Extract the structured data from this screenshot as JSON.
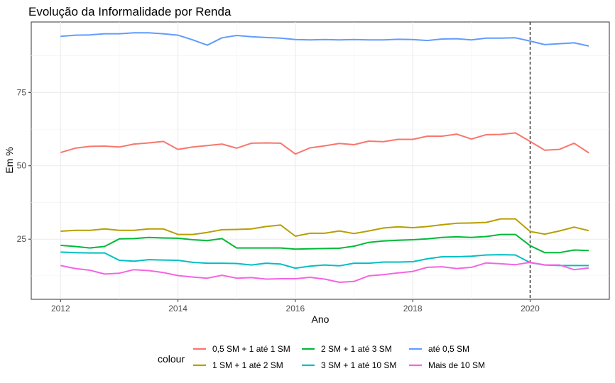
{
  "chart_data": {
    "type": "line",
    "title": "Evolução da Informalidade por Renda",
    "xlabel": "Ano",
    "ylabel": "Em %",
    "xlim": [
      2011.5,
      2021.35
    ],
    "ylim": [
      4.5,
      99
    ],
    "x_ticks": [
      2012,
      2014,
      2016,
      2018,
      2020
    ],
    "x_tick_labels": [
      "2012",
      "2014",
      "2016",
      "2018",
      "2020"
    ],
    "y_ticks": [
      25,
      50,
      75
    ],
    "y_tick_labels": [
      "25",
      "50",
      "75"
    ],
    "grid": true,
    "vline": {
      "x": 2020,
      "style": "dashed",
      "color": "#000000"
    },
    "legend": {
      "title": "colour",
      "position": "bottom"
    },
    "series": [
      {
        "name": "0,5 SM + 1 até 1 SM",
        "color": "#F8766D",
        "x": [
          2012,
          2012.25,
          2012.5,
          2012.75,
          2013,
          2013.25,
          2013.5,
          2013.75,
          2014,
          2014.25,
          2014.5,
          2014.75,
          2015,
          2015.25,
          2015.5,
          2015.75,
          2016,
          2016.25,
          2016.5,
          2016.75,
          2017,
          2017.25,
          2017.5,
          2017.75,
          2018,
          2018.25,
          2018.5,
          2018.75,
          2019,
          2019.25,
          2019.5,
          2019.75,
          2020,
          2020.25,
          2020.5,
          2020.75,
          2021
        ],
        "values": [
          54.5,
          56.0,
          56.6,
          56.7,
          56.4,
          57.4,
          57.8,
          58.3,
          55.6,
          56.4,
          56.9,
          57.4,
          56.0,
          57.7,
          57.8,
          57.7,
          54.0,
          56.1,
          56.8,
          57.6,
          57.2,
          58.4,
          58.2,
          59.0,
          59.0,
          60.1,
          60.1,
          60.8,
          59.1,
          60.6,
          60.7,
          61.2,
          58.3,
          55.3,
          55.6,
          57.7,
          54.4
        ]
      },
      {
        "name": "1 SM + 1 até 2 SM",
        "color": "#B79F00",
        "x": [
          2012,
          2012.25,
          2012.5,
          2012.75,
          2013,
          2013.25,
          2013.5,
          2013.75,
          2014,
          2014.25,
          2014.5,
          2014.75,
          2015,
          2015.25,
          2015.5,
          2015.75,
          2016,
          2016.25,
          2016.5,
          2016.75,
          2017,
          2017.25,
          2017.5,
          2017.75,
          2018,
          2018.25,
          2018.5,
          2018.75,
          2019,
          2019.25,
          2019.5,
          2019.75,
          2020,
          2020.25,
          2020.5,
          2020.75,
          2021
        ],
        "values": [
          27.7,
          28.0,
          28.0,
          28.5,
          28.0,
          28.0,
          28.5,
          28.5,
          26.6,
          26.6,
          27.3,
          28.2,
          28.3,
          28.5,
          29.3,
          29.8,
          26.0,
          27.0,
          27.0,
          27.8,
          26.9,
          27.8,
          28.8,
          29.2,
          28.9,
          29.3,
          29.9,
          30.4,
          30.5,
          30.7,
          31.9,
          31.9,
          27.6,
          26.7,
          27.8,
          29.1,
          27.9
        ]
      },
      {
        "name": "2 SM + 1 até 3 SM",
        "color": "#00BA38",
        "x": [
          2012,
          2012.25,
          2012.5,
          2012.75,
          2013,
          2013.25,
          2013.5,
          2013.75,
          2014,
          2014.25,
          2014.5,
          2014.75,
          2015,
          2015.25,
          2015.5,
          2015.75,
          2016,
          2016.25,
          2016.5,
          2016.75,
          2017,
          2017.25,
          2017.5,
          2017.75,
          2018,
          2018.25,
          2018.5,
          2018.75,
          2019,
          2019.25,
          2019.5,
          2019.75,
          2020,
          2020.25,
          2020.5,
          2020.75,
          2021
        ],
        "values": [
          22.9,
          22.5,
          22.0,
          22.5,
          25.1,
          25.2,
          25.6,
          25.4,
          25.3,
          24.8,
          24.5,
          25.2,
          22.0,
          22.0,
          22.0,
          22.0,
          21.6,
          21.7,
          21.8,
          21.9,
          22.6,
          23.9,
          24.4,
          24.6,
          24.8,
          25.1,
          25.6,
          25.8,
          25.6,
          25.9,
          26.6,
          26.6,
          22.8,
          20.4,
          20.4,
          21.3,
          21.1
        ]
      },
      {
        "name": "3 SM + 1 até 10 SM",
        "color": "#00BFC4",
        "x": [
          2012,
          2012.25,
          2012.5,
          2012.75,
          2013,
          2013.25,
          2013.5,
          2013.75,
          2014,
          2014.25,
          2014.5,
          2014.75,
          2015,
          2015.25,
          2015.5,
          2015.75,
          2016,
          2016.25,
          2016.5,
          2016.75,
          2017,
          2017.25,
          2017.5,
          2017.75,
          2018,
          2018.25,
          2018.5,
          2018.75,
          2019,
          2019.25,
          2019.5,
          2019.75,
          2020,
          2020.25,
          2020.5,
          2020.75,
          2021
        ],
        "values": [
          20.6,
          20.4,
          20.3,
          20.3,
          17.8,
          17.5,
          18.0,
          17.9,
          17.8,
          17.1,
          16.8,
          16.8,
          16.7,
          16.2,
          16.8,
          16.5,
          15.1,
          15.8,
          16.2,
          15.9,
          16.8,
          16.8,
          17.2,
          17.2,
          17.3,
          18.3,
          19.0,
          19.0,
          19.2,
          19.6,
          19.7,
          19.6,
          17.0,
          16.2,
          16.0,
          16.0,
          16.0
        ]
      },
      {
        "name": "até 0,5 SM",
        "color": "#619CFF",
        "x": [
          2012,
          2012.25,
          2012.5,
          2012.75,
          2013,
          2013.25,
          2013.5,
          2013.75,
          2014,
          2014.25,
          2014.5,
          2014.75,
          2015,
          2015.25,
          2015.5,
          2015.75,
          2016,
          2016.25,
          2016.5,
          2016.75,
          2017,
          2017.25,
          2017.5,
          2017.75,
          2018,
          2018.25,
          2018.5,
          2018.75,
          2019,
          2019.25,
          2019.5,
          2019.75,
          2020,
          2020.25,
          2020.5,
          2020.75,
          2021
        ],
        "values": [
          94.1,
          94.5,
          94.6,
          95.0,
          95.0,
          95.3,
          95.3,
          95.0,
          94.5,
          92.9,
          91.1,
          93.6,
          94.4,
          94.0,
          93.7,
          93.5,
          93.0,
          92.9,
          93.0,
          92.9,
          93.0,
          92.9,
          92.9,
          93.1,
          93.0,
          92.7,
          93.2,
          93.3,
          92.9,
          93.5,
          93.5,
          93.6,
          92.5,
          91.3,
          91.6,
          91.9,
          90.8
        ]
      },
      {
        "name": "Mais de 10 SM",
        "color": "#F564E3",
        "x": [
          2012,
          2012.25,
          2012.5,
          2012.75,
          2013,
          2013.25,
          2013.5,
          2013.75,
          2014,
          2014.25,
          2014.5,
          2014.75,
          2015,
          2015.25,
          2015.5,
          2015.75,
          2016,
          2016.25,
          2016.5,
          2016.75,
          2017,
          2017.25,
          2017.5,
          2017.75,
          2018,
          2018.25,
          2018.5,
          2018.75,
          2019,
          2019.25,
          2019.5,
          2019.75,
          2020,
          2020.25,
          2020.5,
          2020.75,
          2021
        ],
        "values": [
          16.0,
          15.0,
          14.4,
          13.1,
          13.4,
          14.6,
          14.3,
          13.6,
          12.6,
          12.1,
          11.7,
          12.7,
          11.7,
          11.9,
          11.4,
          11.5,
          11.5,
          12.0,
          11.4,
          10.3,
          10.6,
          12.5,
          12.9,
          13.5,
          14.0,
          15.4,
          15.6,
          15.0,
          15.4,
          16.9,
          16.6,
          16.3,
          17.1,
          16.2,
          16.2,
          14.6,
          15.2
        ]
      }
    ]
  }
}
